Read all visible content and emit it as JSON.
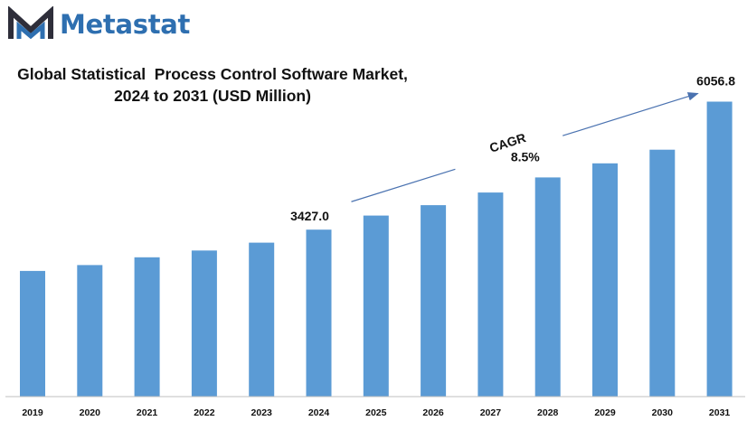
{
  "brand": {
    "name": "Metastat",
    "logo_icon": "metastat-m-icon",
    "color": "#2e6fb0"
  },
  "title_line1": "Global Statistical  Process Control Software Market,",
  "title_line2": "2024 to 2031 (USD Million)",
  "chart_data": {
    "type": "bar",
    "title": "Global Statistical  Process Control Software Market, 2024 to 2031 (USD Million)",
    "categories": [
      "2019",
      "2020",
      "2021",
      "2022",
      "2023",
      "2024",
      "2025",
      "2026",
      "2027",
      "2028",
      "2029",
      "2030",
      "2031"
    ],
    "values": [
      2580,
      2700,
      2860,
      3000,
      3160,
      3427.0,
      3718,
      3930,
      4190,
      4500,
      4790,
      5070,
      6056.8
    ],
    "data_labels": {
      "2024": "3427.0",
      "2031": "6056.8"
    },
    "ylim": [
      0,
      6900
    ],
    "bar_color": "#5b9bd5",
    "grid": false,
    "legend": "none",
    "annotation": {
      "label": "CAGR",
      "value": "8.5%",
      "from": "2024",
      "to": "2031",
      "arrow_color": "#4a72b0"
    }
  }
}
